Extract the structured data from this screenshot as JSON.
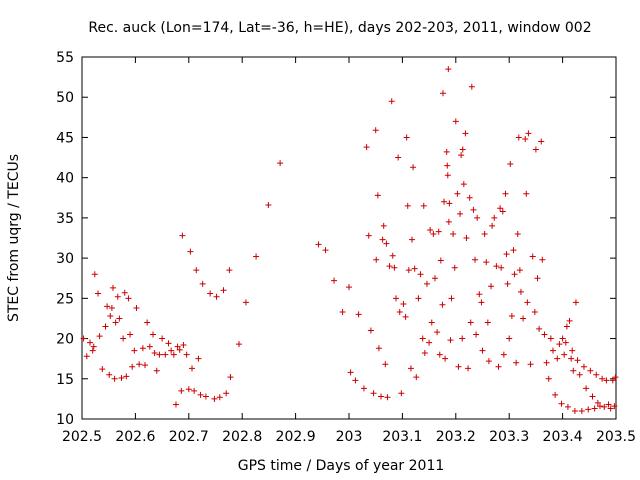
{
  "chart_data": {
    "type": "scatter",
    "title": "Rec. auck (Lon=174, Lat=-36, h=HE), days 202-203, 2011, window 002",
    "xlabel": "GPS time / Days of year 2011",
    "ylabel": "STEC from uqrg / TECUs",
    "xlim": [
      202.5,
      203.5
    ],
    "ylim": [
      10,
      55
    ],
    "xticks": [
      202.5,
      202.6,
      202.7,
      202.8,
      202.9,
      203.0,
      203.1,
      203.2,
      203.3,
      203.4,
      203.5
    ],
    "xtick_labels": [
      "202.5",
      "202.6",
      "202.7",
      "202.8",
      "202.9",
      "203",
      "203.1",
      "203.2",
      "203.3",
      "203.4",
      "203.5"
    ],
    "yticks": [
      10,
      15,
      20,
      25,
      30,
      35,
      40,
      45,
      50,
      55
    ],
    "ytick_labels": [
      "10",
      "15",
      "20",
      "25",
      "30",
      "35",
      "40",
      "45",
      "50",
      "55"
    ],
    "marker": "+",
    "color": "#cc0000",
    "series": [
      {
        "name": "STEC",
        "points": [
          [
            202.503,
            20.0
          ],
          [
            202.509,
            17.8
          ],
          [
            202.515,
            19.5
          ],
          [
            202.52,
            18.5
          ],
          [
            202.522,
            19.0
          ],
          [
            202.524,
            28.0
          ],
          [
            202.53,
            25.6
          ],
          [
            202.533,
            20.3
          ],
          [
            202.538,
            16.2
          ],
          [
            202.544,
            21.5
          ],
          [
            202.547,
            24.0
          ],
          [
            202.551,
            15.5
          ],
          [
            202.553,
            22.8
          ],
          [
            202.556,
            23.8
          ],
          [
            202.558,
            26.3
          ],
          [
            202.561,
            15.0
          ],
          [
            202.563,
            22.0
          ],
          [
            202.567,
            25.2
          ],
          [
            202.57,
            22.5
          ],
          [
            202.574,
            15.1
          ],
          [
            202.577,
            20.0
          ],
          [
            202.58,
            25.7
          ],
          [
            202.583,
            15.3
          ],
          [
            202.587,
            25.0
          ],
          [
            202.59,
            20.5
          ],
          [
            202.594,
            16.5
          ],
          [
            202.598,
            18.5
          ],
          [
            202.602,
            23.8
          ],
          [
            202.607,
            16.8
          ],
          [
            202.614,
            18.8
          ],
          [
            202.618,
            16.7
          ],
          [
            202.622,
            22.0
          ],
          [
            202.627,
            19.0
          ],
          [
            202.633,
            20.5
          ],
          [
            202.636,
            18.2
          ],
          [
            202.64,
            16.0
          ],
          [
            202.645,
            18.0
          ],
          [
            202.65,
            20.0
          ],
          [
            202.656,
            18.0
          ],
          [
            202.662,
            19.4
          ],
          [
            202.667,
            18.5
          ],
          [
            202.672,
            18.0
          ],
          [
            202.676,
            11.8
          ],
          [
            202.679,
            19.0
          ],
          [
            202.683,
            18.6
          ],
          [
            202.686,
            13.5
          ],
          [
            202.688,
            32.8
          ],
          [
            202.69,
            19.2
          ],
          [
            202.696,
            18.0
          ],
          [
            202.7,
            13.7
          ],
          [
            202.703,
            30.8
          ],
          [
            202.706,
            16.3
          ],
          [
            202.71,
            13.5
          ],
          [
            202.714,
            28.5
          ],
          [
            202.718,
            17.5
          ],
          [
            202.722,
            13.0
          ],
          [
            202.726,
            26.8
          ],
          [
            202.732,
            12.8
          ],
          [
            202.74,
            25.6
          ],
          [
            202.748,
            12.5
          ],
          [
            202.752,
            25.2
          ],
          [
            202.758,
            12.7
          ],
          [
            202.765,
            26.0
          ],
          [
            202.77,
            13.2
          ],
          [
            202.776,
            28.5
          ],
          [
            202.778,
            15.2
          ],
          [
            202.794,
            19.3
          ],
          [
            202.807,
            24.5
          ],
          [
            202.826,
            30.2
          ],
          [
            202.849,
            36.6
          ],
          [
            202.871,
            41.8
          ],
          [
            202.943,
            31.7
          ],
          [
            202.956,
            31.0
          ],
          [
            202.972,
            27.2
          ],
          [
            202.988,
            23.3
          ],
          [
            203.0,
            26.4
          ],
          [
            203.003,
            15.8
          ],
          [
            203.012,
            14.8
          ],
          [
            203.018,
            23.0
          ],
          [
            203.028,
            13.8
          ],
          [
            203.033,
            43.8
          ],
          [
            203.037,
            32.8
          ],
          [
            203.041,
            21.0
          ],
          [
            203.046,
            13.2
          ],
          [
            203.05,
            45.9
          ],
          [
            203.051,
            29.8
          ],
          [
            203.054,
            37.8
          ],
          [
            203.056,
            18.8
          ],
          [
            203.06,
            12.8
          ],
          [
            203.063,
            32.3
          ],
          [
            203.065,
            34.0
          ],
          [
            203.068,
            16.8
          ],
          [
            203.07,
            31.8
          ],
          [
            203.072,
            12.7
          ],
          [
            203.076,
            29.0
          ],
          [
            203.08,
            49.5
          ],
          [
            203.082,
            30.3
          ],
          [
            203.085,
            28.8
          ],
          [
            203.088,
            25.0
          ],
          [
            203.092,
            42.5
          ],
          [
            203.095,
            23.3
          ],
          [
            203.098,
            13.2
          ],
          [
            203.102,
            24.3
          ],
          [
            203.106,
            22.7
          ],
          [
            203.108,
            45.0
          ],
          [
            203.11,
            36.5
          ],
          [
            203.112,
            28.5
          ],
          [
            203.116,
            16.3
          ],
          [
            203.118,
            32.3
          ],
          [
            203.12,
            41.3
          ],
          [
            203.123,
            28.7
          ],
          [
            203.126,
            15.2
          ],
          [
            203.13,
            25.0
          ],
          [
            203.134,
            28.0
          ],
          [
            203.138,
            20.0
          ],
          [
            203.14,
            36.5
          ],
          [
            203.142,
            18.2
          ],
          [
            203.146,
            26.8
          ],
          [
            203.15,
            19.5
          ],
          [
            203.152,
            33.5
          ],
          [
            203.155,
            22.0
          ],
          [
            203.158,
            33.0
          ],
          [
            203.161,
            27.5
          ],
          [
            203.165,
            20.8
          ],
          [
            203.168,
            33.3
          ],
          [
            203.17,
            18.0
          ],
          [
            203.172,
            29.7
          ],
          [
            203.175,
            24.2
          ],
          [
            203.176,
            50.5
          ],
          [
            203.178,
            37.0
          ],
          [
            203.18,
            17.5
          ],
          [
            203.183,
            43.2
          ],
          [
            203.184,
            41.5
          ],
          [
            203.185,
            40.3
          ],
          [
            203.186,
            53.5
          ],
          [
            203.187,
            34.5
          ],
          [
            203.188,
            36.8
          ],
          [
            203.19,
            19.8
          ],
          [
            203.192,
            25.0
          ],
          [
            203.195,
            33.0
          ],
          [
            203.198,
            28.8
          ],
          [
            203.2,
            47.0
          ],
          [
            203.203,
            38.0
          ],
          [
            203.205,
            16.5
          ],
          [
            203.208,
            35.5
          ],
          [
            203.21,
            42.8
          ],
          [
            203.212,
            20.0
          ],
          [
            203.213,
            43.5
          ],
          [
            203.215,
            39.2
          ],
          [
            203.218,
            45.5
          ],
          [
            203.22,
            32.5
          ],
          [
            203.223,
            16.3
          ],
          [
            203.226,
            37.5
          ],
          [
            203.228,
            22.0
          ],
          [
            203.23,
            51.3
          ],
          [
            203.233,
            36.0
          ],
          [
            203.236,
            29.8
          ],
          [
            203.238,
            20.5
          ],
          [
            203.24,
            35.0
          ],
          [
            203.244,
            25.5
          ],
          [
            203.248,
            24.5
          ],
          [
            203.25,
            18.5
          ],
          [
            203.254,
            33.0
          ],
          [
            203.257,
            29.5
          ],
          [
            203.26,
            22.0
          ],
          [
            203.262,
            17.2
          ],
          [
            203.266,
            26.5
          ],
          [
            203.268,
            34.0
          ],
          [
            203.272,
            35.0
          ],
          [
            203.276,
            29.0
          ],
          [
            203.28,
            16.5
          ],
          [
            203.283,
            36.2
          ],
          [
            203.285,
            28.8
          ],
          [
            203.288,
            35.8
          ],
          [
            203.29,
            18.0
          ],
          [
            203.293,
            38.0
          ],
          [
            203.295,
            30.5
          ],
          [
            203.297,
            26.8
          ],
          [
            203.3,
            20.0
          ],
          [
            203.302,
            41.7
          ],
          [
            203.305,
            22.8
          ],
          [
            203.308,
            31.0
          ],
          [
            203.31,
            28.0
          ],
          [
            203.313,
            17.0
          ],
          [
            203.316,
            33.0
          ],
          [
            203.318,
            45.0
          ],
          [
            203.32,
            28.5
          ],
          [
            203.322,
            25.8
          ],
          [
            203.326,
            22.5
          ],
          [
            203.33,
            44.8
          ],
          [
            203.332,
            38.0
          ],
          [
            203.334,
            24.5
          ],
          [
            203.336,
            45.5
          ],
          [
            203.34,
            16.8
          ],
          [
            203.344,
            30.2
          ],
          [
            203.348,
            23.3
          ],
          [
            203.35,
            43.5
          ],
          [
            203.353,
            27.5
          ],
          [
            203.356,
            21.2
          ],
          [
            203.36,
            44.5
          ],
          [
            203.362,
            29.8
          ],
          [
            203.366,
            20.5
          ],
          [
            203.37,
            17.0
          ],
          [
            203.374,
            15.0
          ],
          [
            203.378,
            20.0
          ],
          [
            203.382,
            18.5
          ],
          [
            203.386,
            13.0
          ],
          [
            203.39,
            17.5
          ],
          [
            203.394,
            19.3
          ],
          [
            203.398,
            11.9
          ],
          [
            203.4,
            20.0
          ],
          [
            203.403,
            18.0
          ],
          [
            203.406,
            19.5
          ],
          [
            203.408,
            21.5
          ],
          [
            203.41,
            11.5
          ],
          [
            203.413,
            22.2
          ],
          [
            203.416,
            17.5
          ],
          [
            203.418,
            18.5
          ],
          [
            203.42,
            16.0
          ],
          [
            203.423,
            11.0
          ],
          [
            203.425,
            24.5
          ],
          [
            203.428,
            17.3
          ],
          [
            203.432,
            15.5
          ],
          [
            203.436,
            11.0
          ],
          [
            203.44,
            16.5
          ],
          [
            203.444,
            13.8
          ],
          [
            203.448,
            11.2
          ],
          [
            203.452,
            16.0
          ],
          [
            203.456,
            12.8
          ],
          [
            203.46,
            11.3
          ],
          [
            203.463,
            15.5
          ],
          [
            203.466,
            12.0
          ],
          [
            203.47,
            11.6
          ],
          [
            203.474,
            15.0
          ],
          [
            203.478,
            11.5
          ],
          [
            203.482,
            14.8
          ],
          [
            203.486,
            11.8
          ],
          [
            203.49,
            11.3
          ],
          [
            203.494,
            14.8
          ],
          [
            203.497,
            11.6
          ],
          [
            203.499,
            15.2
          ]
        ]
      }
    ]
  }
}
